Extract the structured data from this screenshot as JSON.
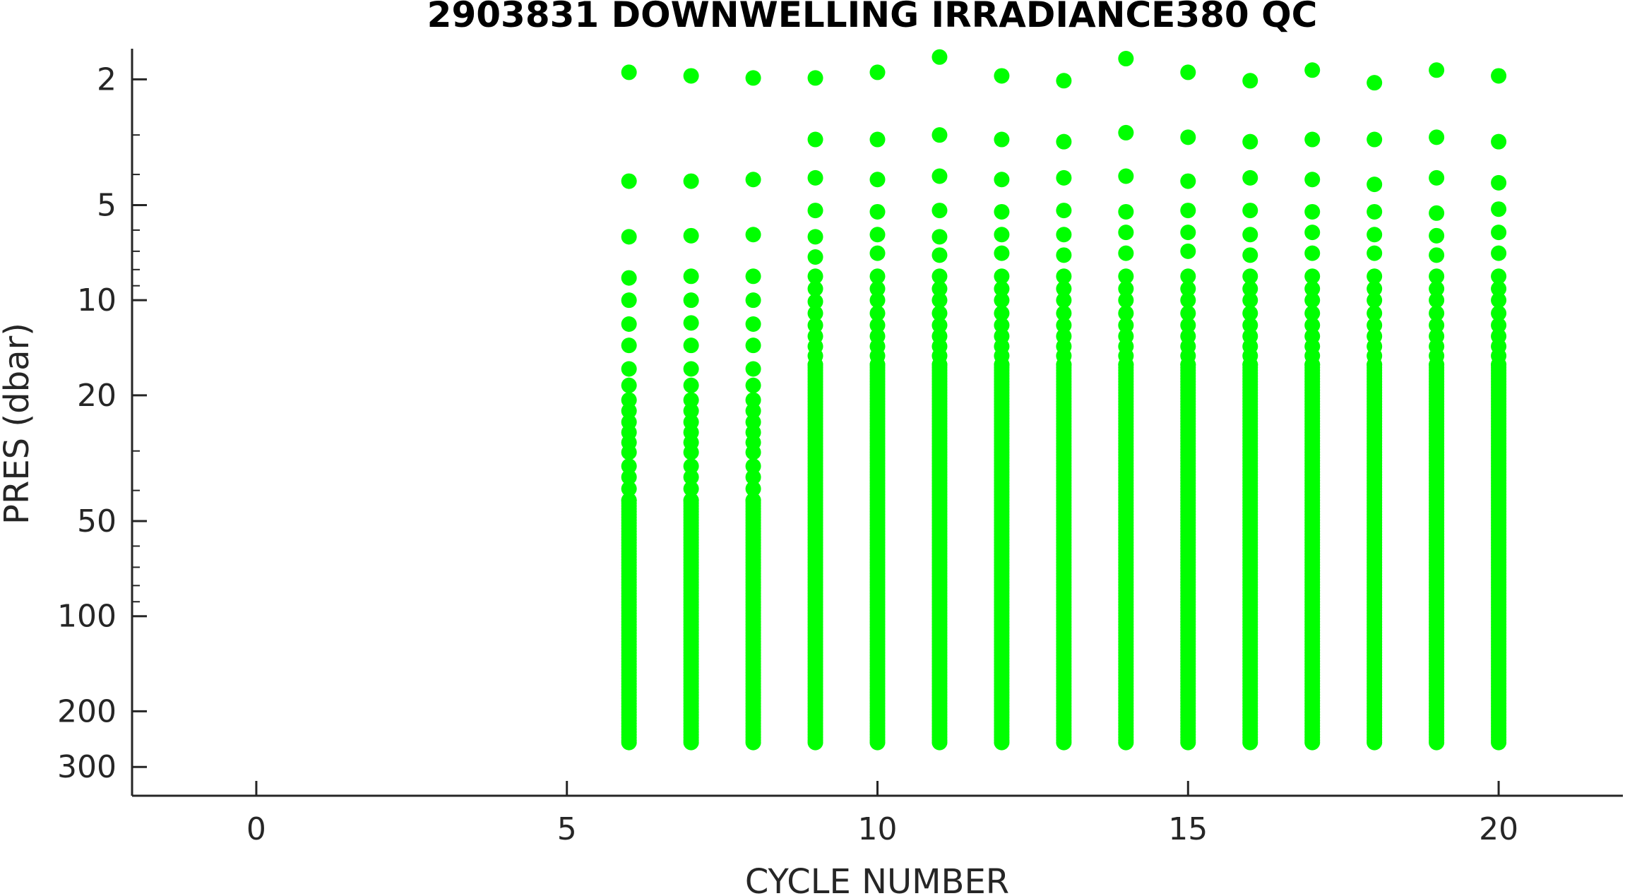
{
  "chart_data": {
    "type": "scatter",
    "title": "2903831  DOWNWELLING IRRADIANCE380 QC",
    "xlabel": "CYCLE NUMBER",
    "ylabel": "PRES (dbar)",
    "x_scale": "linear",
    "y_scale": "log",
    "y_reversed": true,
    "xlim": [
      -2,
      22
    ],
    "ylim": [
      1.6,
      370
    ],
    "xticks": [
      0,
      5,
      10,
      15,
      20
    ],
    "xtick_labels": [
      "0",
      "5",
      "10",
      "15",
      "20"
    ],
    "yticks": [
      2,
      5,
      10,
      20,
      50,
      100,
      200,
      300
    ],
    "ytick_labels": [
      "2",
      "5",
      "10",
      "20",
      "50",
      "100",
      "200",
      "300"
    ],
    "grid": false,
    "marker_color": "#00ff00",
    "series": [
      {
        "profiles": [
          {
            "cycle": 6,
            "top_pressures": [
              1.9,
              4.2,
              6.3,
              8.5,
              10,
              11.9,
              13.9,
              16.5,
              18.6,
              20.7,
              22.4,
              24.3,
              26.2,
              28.2,
              30.3,
              33.5,
              36.3,
              39.5,
              43
            ],
            "bottom_pressure": 251
          },
          {
            "cycle": 7,
            "top_pressures": [
              1.95,
              4.2,
              6.25,
              8.4,
              10,
              11.8,
              13.9,
              16.5,
              18.6,
              20.7,
              22.4,
              24.3,
              26.2,
              28.2,
              30.3,
              33.5,
              36.3,
              39.5,
              43
            ],
            "bottom_pressure": 251
          },
          {
            "cycle": 8,
            "top_pressures": [
              1.98,
              4.15,
              6.2,
              8.4,
              10,
              11.9,
              13.9,
              16.5,
              18.6,
              20.7,
              22.4,
              24.3,
              26.2,
              28.2,
              30.3,
              33.5,
              36.3,
              39.5,
              43
            ],
            "bottom_pressure": 251
          },
          {
            "cycle": 9,
            "top_pressures": [
              1.98,
              3.1,
              4.1,
              5.2,
              6.3,
              7.3,
              8.4,
              9.2,
              10.1,
              11,
              12,
              13,
              14,
              15,
              16
            ],
            "bottom_pressure": 251
          },
          {
            "cycle": 10,
            "top_pressures": [
              1.9,
              3.1,
              4.15,
              5.25,
              6.2,
              7.1,
              8.4,
              9.2,
              10,
              11,
              12,
              13,
              14,
              15,
              16
            ],
            "bottom_pressure": 251
          },
          {
            "cycle": 11,
            "top_pressures": [
              1.7,
              3.0,
              4.05,
              5.2,
              6.3,
              7.2,
              8.4,
              9.2,
              10,
              11,
              12,
              13,
              14,
              15,
              16
            ],
            "bottom_pressure": 251
          },
          {
            "cycle": 12,
            "top_pressures": [
              1.95,
              3.1,
              4.15,
              5.25,
              6.2,
              7.1,
              8.4,
              9.2,
              10,
              11,
              12,
              13,
              14,
              15,
              16
            ],
            "bottom_pressure": 251
          },
          {
            "cycle": 13,
            "top_pressures": [
              2.02,
              3.15,
              4.1,
              5.2,
              6.2,
              7.2,
              8.4,
              9.2,
              10,
              11,
              12,
              13,
              14,
              15,
              16
            ],
            "bottom_pressure": 251
          },
          {
            "cycle": 14,
            "top_pressures": [
              1.72,
              2.95,
              4.05,
              5.25,
              6.1,
              7.1,
              8.4,
              9.2,
              10,
              11,
              12,
              13,
              14,
              15,
              16
            ],
            "bottom_pressure": 251
          },
          {
            "cycle": 15,
            "top_pressures": [
              1.9,
              3.05,
              4.2,
              5.2,
              6.1,
              7.0,
              8.4,
              9.2,
              10,
              11,
              12,
              13,
              14,
              15,
              16
            ],
            "bottom_pressure": 251
          },
          {
            "cycle": 16,
            "top_pressures": [
              2.02,
              3.15,
              4.1,
              5.2,
              6.2,
              7.2,
              8.4,
              9.2,
              10,
              11,
              12,
              13,
              14,
              15,
              16
            ],
            "bottom_pressure": 251
          },
          {
            "cycle": 17,
            "top_pressures": [
              1.87,
              3.1,
              4.15,
              5.25,
              6.1,
              7.1,
              8.4,
              9.2,
              10,
              11,
              12,
              13,
              14,
              15,
              16
            ],
            "bottom_pressure": 251
          },
          {
            "cycle": 18,
            "top_pressures": [
              2.05,
              3.1,
              4.3,
              5.25,
              6.2,
              7.1,
              8.4,
              9.2,
              10,
              11,
              12,
              13,
              14,
              15,
              16
            ],
            "bottom_pressure": 251
          },
          {
            "cycle": 19,
            "top_pressures": [
              1.87,
              3.05,
              4.1,
              5.3,
              6.25,
              7.2,
              8.4,
              9.2,
              10,
              11,
              12,
              13,
              14,
              15,
              16
            ],
            "bottom_pressure": 251
          },
          {
            "cycle": 20,
            "top_pressures": [
              1.95,
              3.15,
              4.25,
              5.15,
              6.1,
              7.1,
              8.4,
              9.2,
              10,
              11,
              12,
              13,
              14,
              15,
              16
            ],
            "bottom_pressure": 251
          }
        ]
      }
    ]
  }
}
